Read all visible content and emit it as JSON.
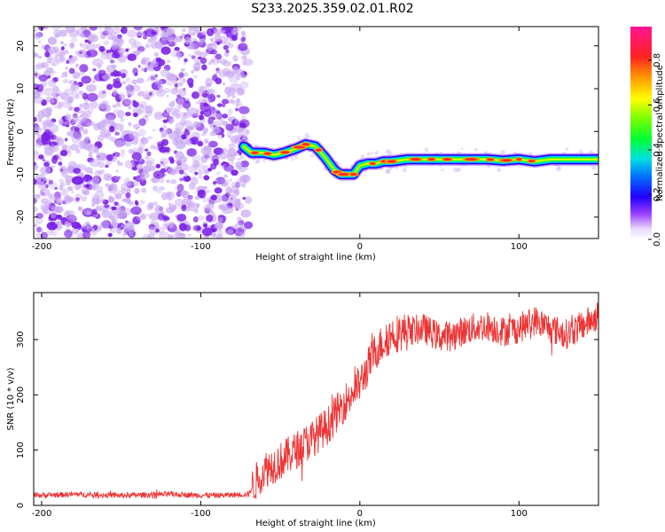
{
  "title": "S233.2025.359.02.01.R02",
  "colors": {
    "snr_line": "#ee3333",
    "noise_purple": "#7a1fe6",
    "noise_light": "#c9a8f3"
  },
  "chart_data": [
    {
      "type": "heatmap",
      "name": "spectrogram",
      "xlabel": "Height of straight line (km)",
      "ylabel": "Frequency (Hz)",
      "xlim": [
        -205,
        150
      ],
      "ylim": [
        -25,
        24.5
      ],
      "xticks": [
        -200,
        -100,
        0,
        100
      ],
      "yticks": [
        -20,
        -10,
        0,
        10,
        20
      ],
      "x_tick_labels": [
        "-200",
        "-100",
        "0",
        "100"
      ],
      "y_tick_labels": [
        "-20",
        "-10",
        "0",
        "10",
        "20"
      ],
      "noise_region_x": [
        -205,
        -70
      ],
      "signal_track": {
        "x": [
          -73,
          -68,
          -60,
          -54,
          -48,
          -40,
          -34,
          -28,
          -22,
          -16,
          -12,
          -8,
          -4,
          0,
          5,
          10,
          15,
          20,
          30,
          40,
          60,
          80,
          90,
          100,
          110,
          120,
          135,
          150
        ],
        "freq": [
          -3.5,
          -5,
          -5,
          -5.5,
          -5,
          -4,
          -3,
          -3.5,
          -6,
          -9,
          -10,
          -10,
          -10,
          -8,
          -7.5,
          -7.5,
          -7,
          -7,
          -6.5,
          -6.5,
          -6.5,
          -6.5,
          -6.8,
          -6.5,
          -7,
          -6.5,
          -6.5,
          -6.5
        ]
      },
      "colorbar": {
        "label": "Normalized spectral amplitude",
        "range": [
          0.0,
          0.95
        ],
        "ticks": [
          0.0,
          0.2,
          0.4,
          0.6,
          0.8
        ],
        "tick_labels": [
          "0.0",
          "0.2",
          "0.4",
          "0.6",
          "0.8"
        ]
      }
    },
    {
      "type": "line",
      "name": "snr",
      "xlabel": "Height of straight line (km)",
      "ylabel": "SNR (10 * v/v)",
      "xlim": [
        -205,
        150
      ],
      "ylim": [
        0,
        385
      ],
      "xticks": [
        -200,
        -100,
        0,
        100
      ],
      "yticks": [
        0,
        100,
        200,
        300
      ],
      "x_tick_labels": [
        "-200",
        "-100",
        "0",
        "100"
      ],
      "y_tick_labels": [
        "0",
        "100",
        "200",
        "300"
      ],
      "series": [
        {
          "name": "SNR",
          "x": [
            -205,
            -180,
            -150,
            -120,
            -90,
            -70,
            -65,
            -60,
            -50,
            -40,
            -30,
            -20,
            -10,
            0,
            10,
            20,
            30,
            40,
            50,
            60,
            70,
            80,
            90,
            100,
            110,
            120,
            130,
            140,
            150
          ],
          "values": [
            18,
            20,
            18,
            20,
            18,
            20,
            45,
            65,
            80,
            100,
            120,
            145,
            185,
            220,
            280,
            310,
            315,
            320,
            305,
            310,
            320,
            325,
            315,
            320,
            335,
            320,
            310,
            325,
            345
          ]
        }
      ]
    }
  ]
}
